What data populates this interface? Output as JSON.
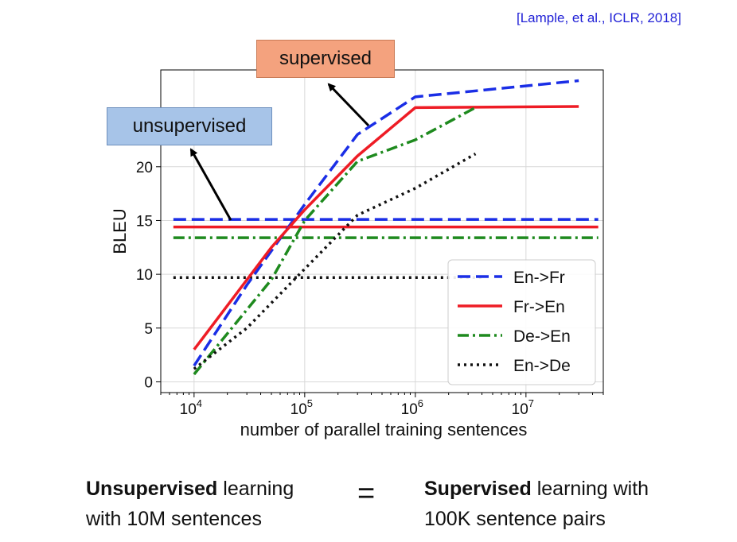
{
  "citation": "[Lample, et al., ICLR, 2018]",
  "callouts": {
    "supervised": "supervised",
    "unsupervised": "unsupervised"
  },
  "bottom": {
    "left_bold": "Unsupervised",
    "left_rest1": " learning",
    "left_line2": "with 10M sentences",
    "equals": "=",
    "right_bold": "Supervised",
    "right_rest1": " learning with",
    "right_line2": "100K sentence pairs"
  },
  "colors": {
    "en_fr": "#1a2ee6",
    "fr_en": "#ee1c25",
    "de_en": "#1e8a1e",
    "en_de": "#111111"
  },
  "chart_data": {
    "type": "line",
    "xlabel": "number of parallel training sentences",
    "ylabel": "BLEU",
    "xscale": "log",
    "xlim": [
      5000,
      50000000
    ],
    "ylim": [
      -1,
      29
    ],
    "yticks": [
      0,
      5,
      10,
      15,
      20
    ],
    "xticks": [
      {
        "value": 10000,
        "base": "10",
        "exp": "4"
      },
      {
        "value": 100000,
        "base": "10",
        "exp": "5"
      },
      {
        "value": 1000000,
        "base": "10",
        "exp": "6"
      },
      {
        "value": 10000000,
        "base": "10",
        "exp": "7"
      }
    ],
    "grid": true,
    "legend_position": "lower-right",
    "series": [
      {
        "name": "En->Fr",
        "style": "dashed",
        "color": "#1a2ee6",
        "x": [
          10000,
          30000,
          100000,
          300000,
          1000000,
          30000000
        ],
        "y": [
          1.5,
          9,
          16.5,
          23,
          26.5,
          28
        ]
      },
      {
        "name": "Fr->En",
        "style": "solid",
        "color": "#ee1c25",
        "x": [
          10000,
          50000,
          100000,
          300000,
          1000000,
          30000000
        ],
        "y": [
          3,
          12.5,
          16,
          21,
          25.5,
          25.6
        ]
      },
      {
        "name": "De->En",
        "style": "dashdot",
        "color": "#1e8a1e",
        "x": [
          10000,
          50000,
          100000,
          300000,
          1000000,
          3500000
        ],
        "y": [
          0.7,
          9.5,
          15,
          20.5,
          22.5,
          25.5
        ]
      },
      {
        "name": "En->De",
        "style": "dotted",
        "color": "#111111",
        "x": [
          10000,
          30000,
          100000,
          300000,
          1000000,
          3500000
        ],
        "y": [
          1.2,
          5,
          10.5,
          15.5,
          18,
          21.2
        ]
      }
    ],
    "baselines": [
      {
        "series": "En->Fr",
        "style": "dashed",
        "color": "#1a2ee6",
        "y": 15.1,
        "x": [
          6500,
          45000000
        ]
      },
      {
        "series": "Fr->En",
        "style": "solid",
        "color": "#ee1c25",
        "y": 14.4,
        "x": [
          6500,
          45000000
        ]
      },
      {
        "series": "De->En",
        "style": "dashdot",
        "color": "#1e8a1e",
        "y": 13.4,
        "x": [
          6500,
          45000000
        ]
      },
      {
        "series": "En->De",
        "style": "dotted",
        "color": "#111111",
        "y": 9.7,
        "x": [
          6500,
          4000000
        ]
      }
    ]
  }
}
